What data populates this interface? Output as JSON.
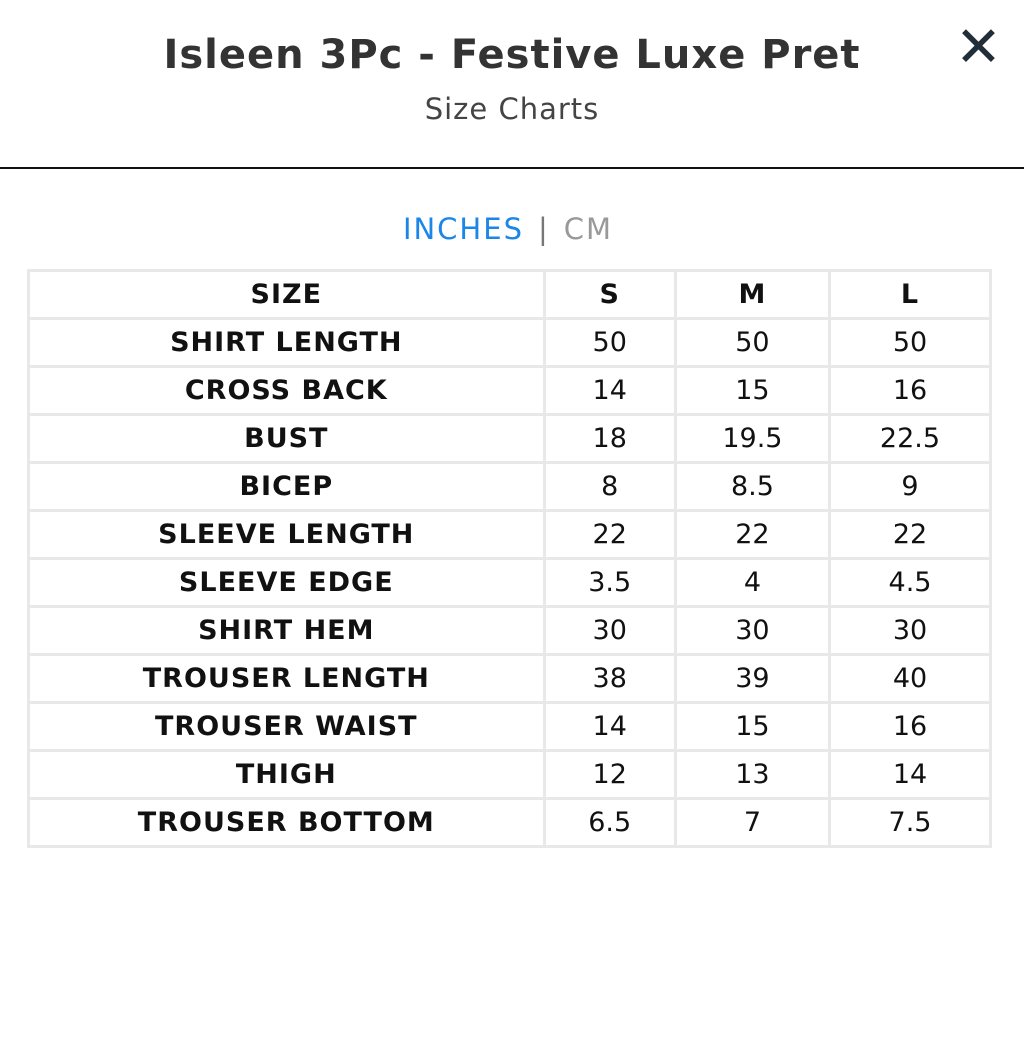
{
  "header": {
    "title": "Isleen 3Pc - Festive Luxe Pret",
    "subtitle": "Size Charts",
    "close_icon": "x-icon"
  },
  "units": {
    "active": "INCHES",
    "separator": "|",
    "inactive": "CM",
    "active_color": "#1a86e8"
  },
  "table": {
    "columns": [
      "SIZE",
      "S",
      "M",
      "L"
    ],
    "rows": [
      [
        "SHIRT LENGTH",
        "50",
        "50",
        "50"
      ],
      [
        "CROSS BACK",
        "14",
        "15",
        "16"
      ],
      [
        "BUST",
        "18",
        "19.5",
        "22.5"
      ],
      [
        "BICEP",
        "8",
        "8.5",
        "9"
      ],
      [
        "SLEEVE LENGTH",
        "22",
        "22",
        "22"
      ],
      [
        "SLEEVE EDGE",
        "3.5",
        "4",
        "4.5"
      ],
      [
        "SHIRT HEM",
        "30",
        "30",
        "30"
      ],
      [
        "TROUSER LENGTH",
        "38",
        "39",
        "40"
      ],
      [
        "TROUSER WAIST",
        "14",
        "15",
        "16"
      ],
      [
        "THIGH",
        "12",
        "13",
        "14"
      ],
      [
        "TROUSER BOTTOM",
        "6.5",
        "7",
        "7.5"
      ]
    ]
  }
}
